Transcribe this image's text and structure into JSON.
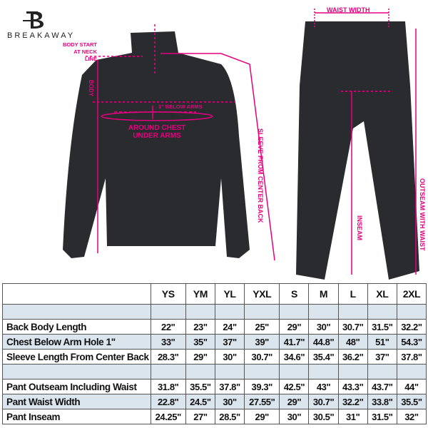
{
  "brand": {
    "name": "BREAKAWAY"
  },
  "annotations": {
    "body_start": "BODY START AT NECK LINE",
    "body": "BODY",
    "below_arms": "1\" BELOW ARMS",
    "around_chest": "AROUND CHEST UNDER ARMS",
    "sleeve": "SLEEVE FROM CENTER BACK",
    "waist_width": "WAIST WIDTH",
    "inseam": "INSEAM",
    "outseam": "OUTSEAM WITH WAIST"
  },
  "colors": {
    "accent": "#e6007e",
    "garment": "#2a2b2f",
    "row_highlight": "#dbe5ee"
  },
  "table": {
    "sizes": [
      "YS",
      "YM",
      "YL",
      "YXL",
      "S",
      "M",
      "L",
      "XL",
      "2XL"
    ],
    "rows": [
      {
        "label": "Back Body Length",
        "values": [
          "22\"",
          "23\"",
          "24\"",
          "25\"",
          "29\"",
          "30\"",
          "30.7\"",
          "31.5\"",
          "32.2\""
        ]
      },
      {
        "label": "Chest Below Arm Hole 1\"",
        "values": [
          "33\"",
          "35\"",
          "37\"",
          "39\"",
          "41.7\"",
          "44.8\"",
          "48\"",
          "51\"",
          "54.3\""
        ]
      },
      {
        "label": "Sleeve Length From Center Back",
        "values": [
          "28.3\"",
          "29\"",
          "30\"",
          "30.7\"",
          "34.6\"",
          "35.4\"",
          "36.2\"",
          "37\"",
          "37.8\""
        ]
      },
      {
        "label": "Pant Outseam Including Waist",
        "values": [
          "31.8\"",
          "35.5\"",
          "37.8\"",
          "39.3\"",
          "42.5\"",
          "43\"",
          "43.3\"",
          "43.7\"",
          "44\""
        ]
      },
      {
        "label": "Pant Waist Width",
        "values": [
          "22.8\"",
          "24.5\"",
          "30\"",
          "27.55\"",
          "29\"",
          "30.7\"",
          "32.2\"",
          "33.8\"",
          "35.5\""
        ]
      },
      {
        "label": "Pant Inseam",
        "values": [
          "24.25\"",
          "27\"",
          "28.5\"",
          "29\"",
          "30\"",
          "30.5\"",
          "31\"",
          "31.5\"",
          "32\""
        ]
      }
    ]
  }
}
